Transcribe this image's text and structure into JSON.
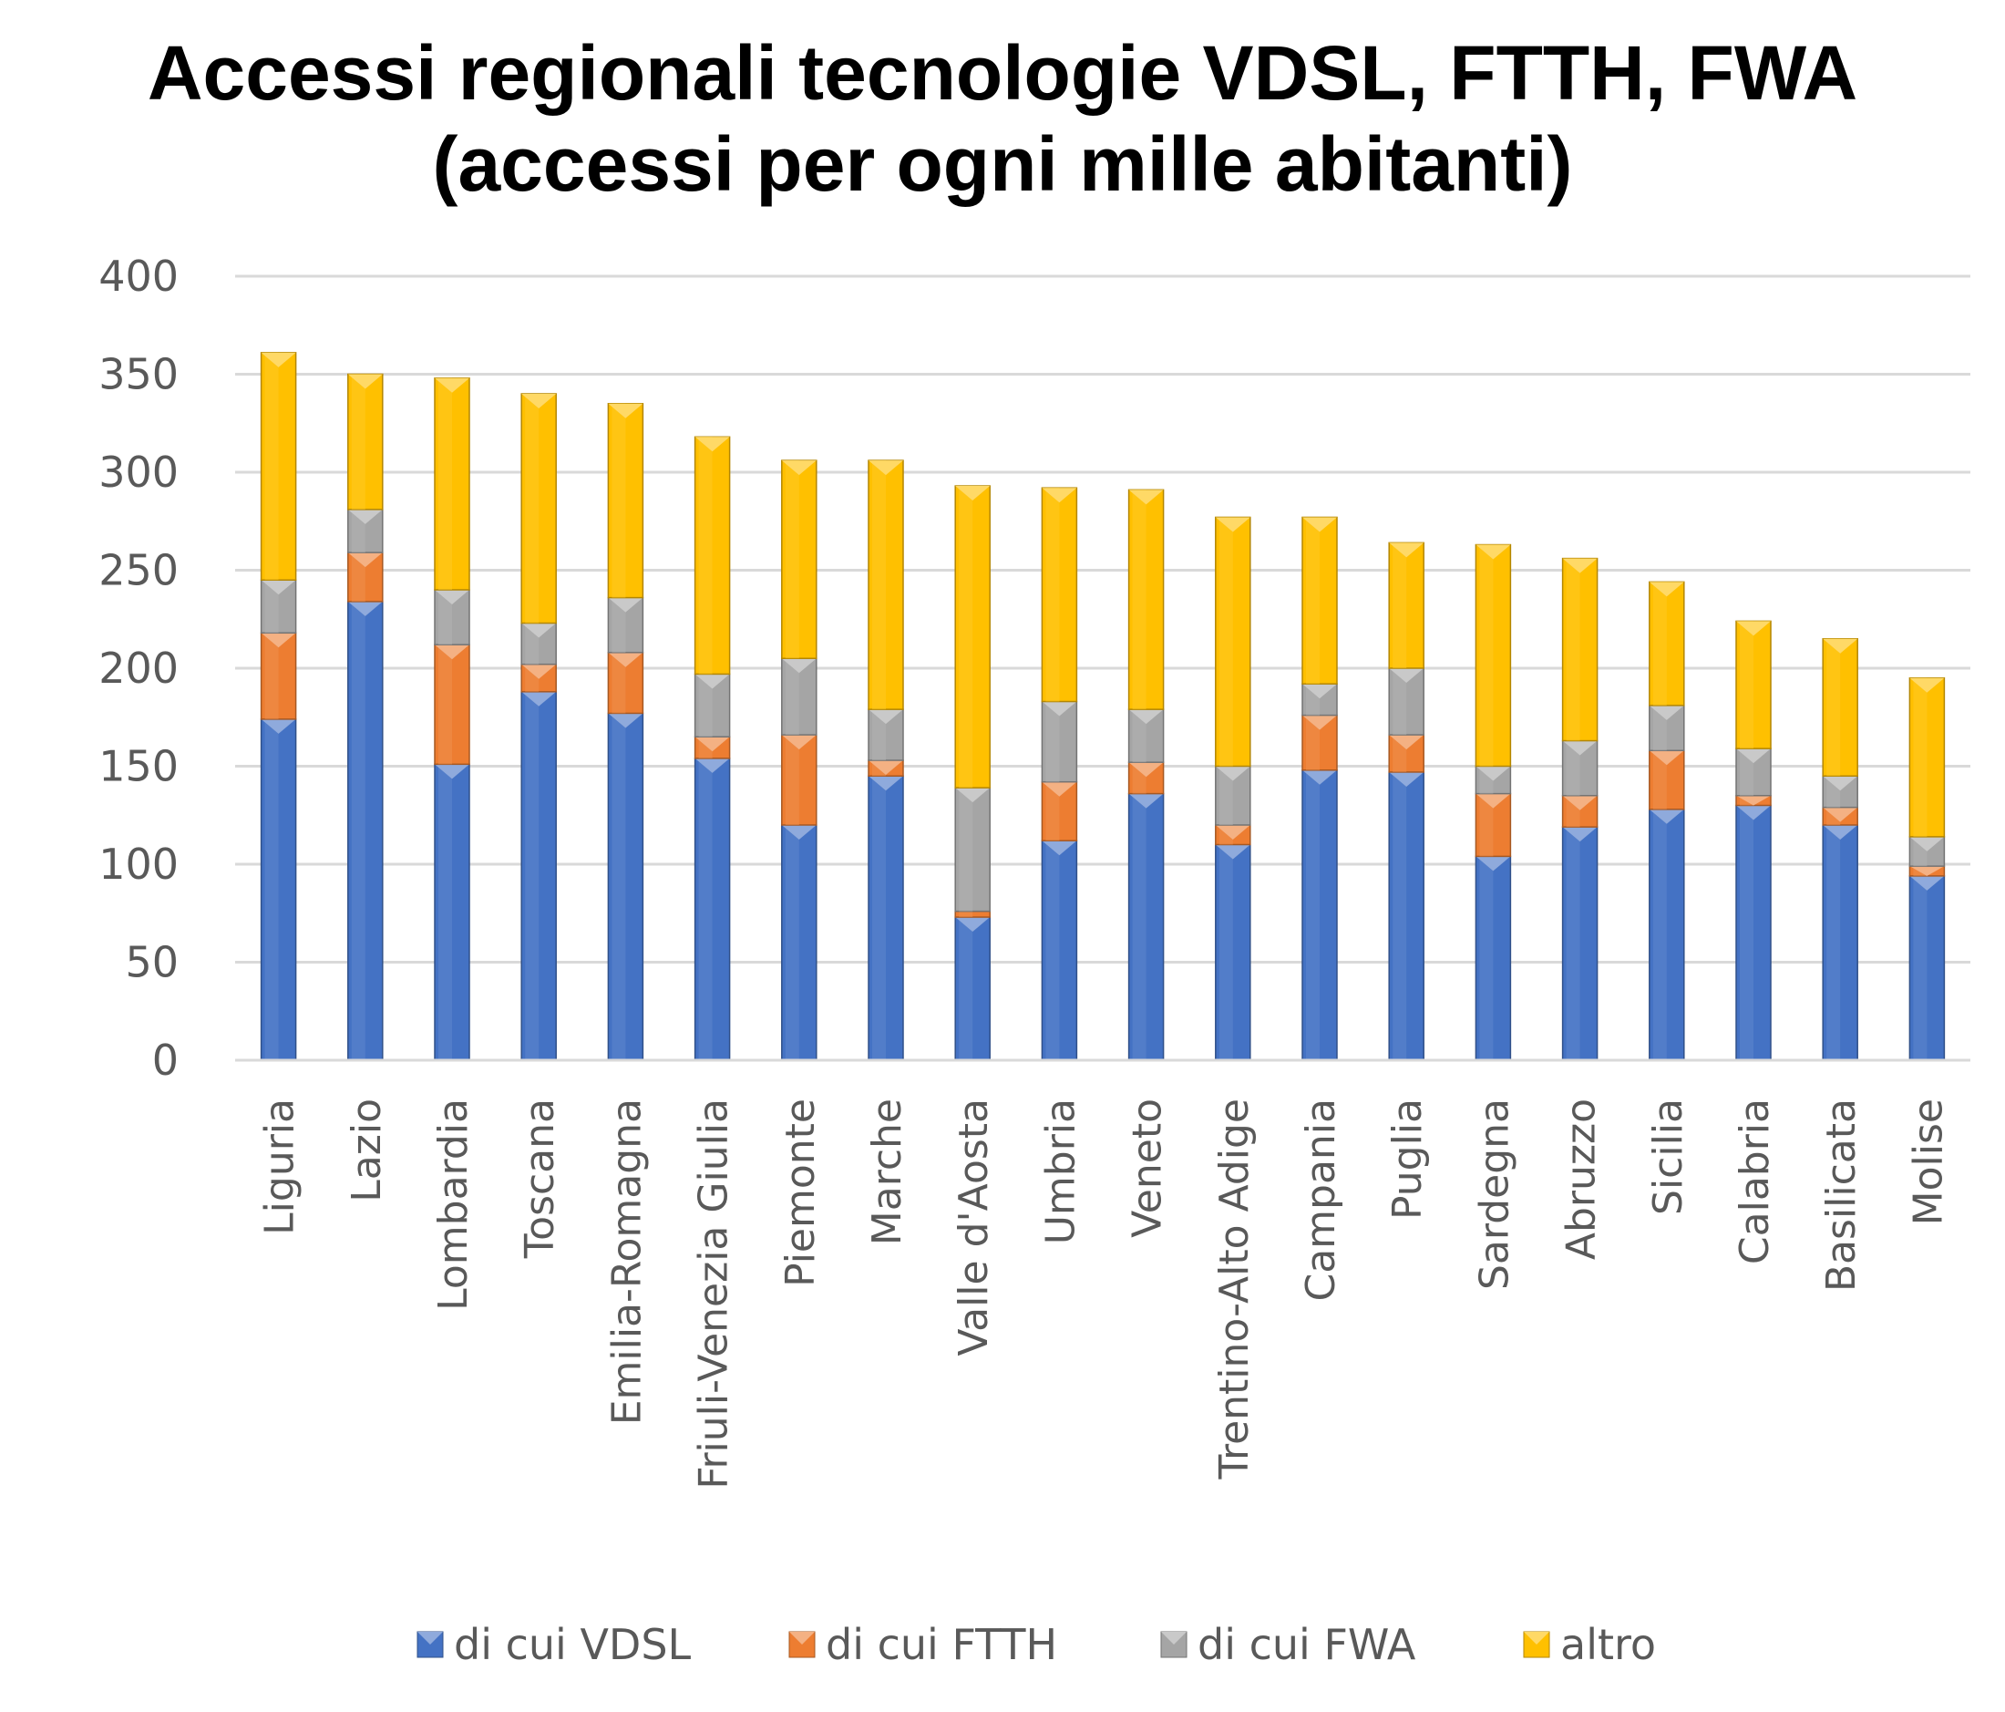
{
  "chart_data": {
    "type": "bar",
    "stacked": true,
    "title_line1": "Accessi regionali tecnologie VDSL, FTTH, FWA",
    "title_line2": "(accessi per ogni mille abitanti)",
    "ylim": [
      0,
      400
    ],
    "yticks": [
      0,
      50,
      100,
      150,
      200,
      250,
      300,
      350,
      400
    ],
    "grid": true,
    "legend_position": "bottom",
    "categories": [
      "Liguria",
      "Lazio",
      "Lombardia",
      "Toscana",
      "Emilia-Romagna",
      "Friuli-Venezia Giulia",
      "Piemonte",
      "Marche",
      "Valle d'Aosta",
      "Umbria",
      "Veneto",
      "Trentino-Alto Adige",
      "Campania",
      "Puglia",
      "Sardegna",
      "Abruzzo",
      "Sicilia",
      "Calabria",
      "Basilicata",
      "Molise"
    ],
    "series": [
      {
        "name": "di cui VDSL",
        "color": "#4472C4",
        "values": [
          174,
          234,
          151,
          188,
          177,
          154,
          120,
          145,
          73,
          112,
          136,
          110,
          148,
          147,
          104,
          119,
          128,
          130,
          120,
          94
        ]
      },
      {
        "name": "di cui FTTH",
        "color": "#ED7D31",
        "values": [
          44,
          25,
          61,
          14,
          31,
          11,
          46,
          8,
          3,
          30,
          16,
          10,
          28,
          19,
          32,
          16,
          30,
          5,
          9,
          5
        ]
      },
      {
        "name": "di cui FWA",
        "color": "#A5A5A5",
        "values": [
          27,
          22,
          28,
          21,
          28,
          32,
          39,
          26,
          63,
          41,
          27,
          30,
          16,
          34,
          14,
          28,
          23,
          24,
          16,
          15
        ]
      },
      {
        "name": "altro",
        "color": "#FFC000",
        "values": [
          116,
          69,
          108,
          117,
          99,
          121,
          101,
          127,
          154,
          109,
          112,
          127,
          85,
          64,
          113,
          93,
          63,
          65,
          70,
          81
        ]
      }
    ]
  }
}
